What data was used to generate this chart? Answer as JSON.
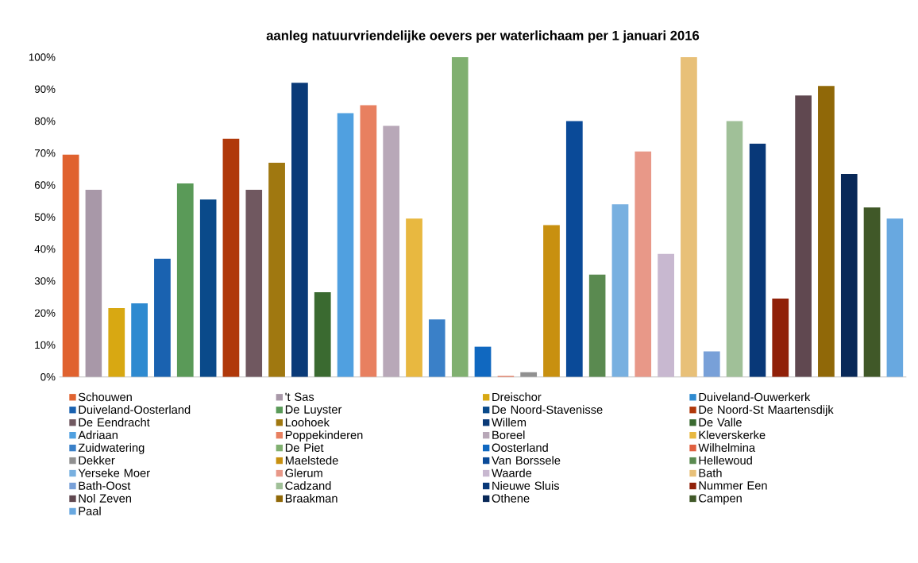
{
  "chart_data": {
    "type": "bar",
    "title": "aanleg natuurvriendelijke oevers per waterlichaam per 1 januari 2016",
    "categories": [
      null
    ],
    "ylim": [
      0,
      100
    ],
    "yticks": [
      {
        "value": 0,
        "label": "0%"
      },
      {
        "value": 10,
        "label": "10%"
      },
      {
        "value": 20,
        "label": "20%"
      },
      {
        "value": 30,
        "label": "30%"
      },
      {
        "value": 40,
        "label": "40%"
      },
      {
        "value": 50,
        "label": "50%"
      },
      {
        "value": 60,
        "label": "60%"
      },
      {
        "value": 70,
        "label": "70%"
      },
      {
        "value": 80,
        "label": "80%"
      },
      {
        "value": 90,
        "label": "90%"
      },
      {
        "value": 100,
        "label": "100%"
      }
    ],
    "legend": "bottom",
    "series": [
      {
        "name": "Schouwen",
        "color": "#e0622f",
        "values": [
          69.5
        ]
      },
      {
        "name": "'t Sas",
        "color": "#a898a8",
        "values": [
          58.5
        ]
      },
      {
        "name": "Dreischor",
        "color": "#d8a812",
        "values": [
          21.5
        ]
      },
      {
        "name": "Duiveland-Ouwerkerk",
        "color": "#2e8ad0",
        "values": [
          23
        ]
      },
      {
        "name": "Duiveland-Oosterland",
        "color": "#1a62b0",
        "values": [
          37
        ]
      },
      {
        "name": "De Luyster",
        "color": "#5a9a58",
        "values": [
          60.5
        ]
      },
      {
        "name": "De Noord-Stavenisse",
        "color": "#0a4a8a",
        "values": [
          55.5
        ]
      },
      {
        "name": "De Noord-St Maartensdijk",
        "color": "#b0380a",
        "values": [
          74.5
        ]
      },
      {
        "name": "De Eendracht",
        "color": "#705860",
        "values": [
          58.5
        ]
      },
      {
        "name": "Loohoek",
        "color": "#a07810",
        "values": [
          67
        ]
      },
      {
        "name": "Willem",
        "color": "#0a3a78",
        "values": [
          92
        ]
      },
      {
        "name": "De Valle",
        "color": "#3a6a30",
        "values": [
          26.5
        ]
      },
      {
        "name": "Adriaan",
        "color": "#50a0e0",
        "values": [
          82.5
        ]
      },
      {
        "name": "Poppekinderen",
        "color": "#e88060",
        "values": [
          85
        ]
      },
      {
        "name": "Boreel",
        "color": "#b8a8b8",
        "values": [
          78.5
        ]
      },
      {
        "name": "Kleverskerke",
        "color": "#e8b840",
        "values": [
          49.5
        ]
      },
      {
        "name": "Zuidwatering",
        "color": "#3a80c8",
        "values": [
          18
        ]
      },
      {
        "name": "De Piet",
        "color": "#80b070",
        "values": [
          100
        ]
      },
      {
        "name": "Oosterland",
        "color": "#1068c0",
        "values": [
          9.5
        ]
      },
      {
        "name": "Wilhelmina",
        "color": "#e06040",
        "values": [
          0.3
        ]
      },
      {
        "name": "Dekker",
        "color": "#909090",
        "values": [
          1.5
        ]
      },
      {
        "name": "Maelstede",
        "color": "#c89010",
        "values": [
          47.5
        ]
      },
      {
        "name": "Van Borssele",
        "color": "#0a4a98",
        "values": [
          80
        ]
      },
      {
        "name": "Hellewoud",
        "color": "#5a8a50",
        "values": [
          32
        ]
      },
      {
        "name": "Yerseke Moer",
        "color": "#78b0e0",
        "values": [
          54
        ]
      },
      {
        "name": "Glerum",
        "color": "#e89888",
        "values": [
          70.5
        ]
      },
      {
        "name": "Waarde",
        "color": "#c8b8d0",
        "values": [
          38.5
        ]
      },
      {
        "name": "Bath",
        "color": "#e8c078",
        "values": [
          100
        ]
      },
      {
        "name": "Bath-Oost",
        "color": "#78a0d8",
        "values": [
          8
        ]
      },
      {
        "name": "Cadzand",
        "color": "#a0c098",
        "values": [
          80
        ]
      },
      {
        "name": "Nieuwe Sluis",
        "color": "#083878",
        "values": [
          73
        ]
      },
      {
        "name": "Nummer Een",
        "color": "#902008",
        "values": [
          24.5
        ]
      },
      {
        "name": "Nol Zeven",
        "color": "#604850",
        "values": [
          88
        ]
      },
      {
        "name": "Braakman",
        "color": "#906808",
        "values": [
          91
        ]
      },
      {
        "name": "Othene",
        "color": "#082858",
        "values": [
          63.5
        ]
      },
      {
        "name": "Campen",
        "color": "#405828",
        "values": [
          53
        ]
      },
      {
        "name": "Paal",
        "color": "#68a8e0",
        "values": [
          49.5
        ]
      }
    ]
  }
}
